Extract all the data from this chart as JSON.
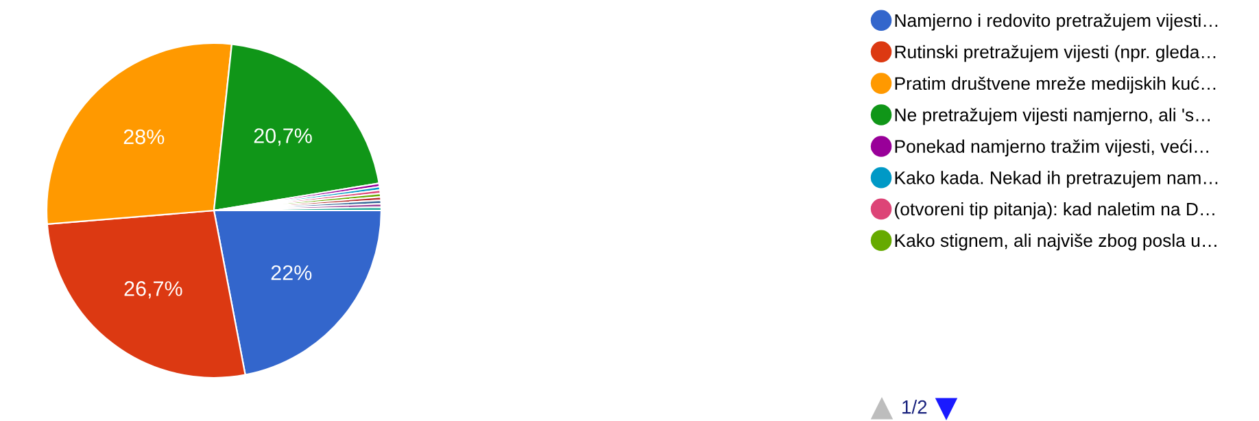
{
  "chart_data": {
    "type": "pie",
    "categories": [
      "Namjerno i redovito pretražujem vijesti…",
      "Rutinski pretražujem vijesti (npr. gleda…",
      "Pratim društvene mreže medijskih kuć…",
      "Ne pretražujem vijesti namjerno, ali 's…",
      "Ponekad namjerno tražim vijesti, veći…",
      "Kako kada. Nekad ih pretrazujem nam…",
      "(otvoreni tip pitanja): kad naletim na D…",
      "Kako stignem, ali najviše zbog posla u…",
      null,
      null,
      null,
      null
    ],
    "values": [
      22,
      26.7,
      28,
      20.7,
      0.325,
      0.325,
      0.325,
      0.325,
      0.325,
      0.325,
      0.325,
      0.325
    ],
    "colors": [
      "#3366cc",
      "#dc3912",
      "#ff9900",
      "#109618",
      "#990099",
      "#0099c6",
      "#dd4477",
      "#66aa00",
      "#b82e2e",
      "#316395",
      "#994499",
      "#22aa99"
    ],
    "value_labels": [
      "22%",
      "26,7%",
      "28%",
      "20,7%",
      null,
      null,
      null,
      null,
      null,
      null,
      null,
      null
    ],
    "legend": "right",
    "annotations": [
      "1/2"
    ]
  }
}
